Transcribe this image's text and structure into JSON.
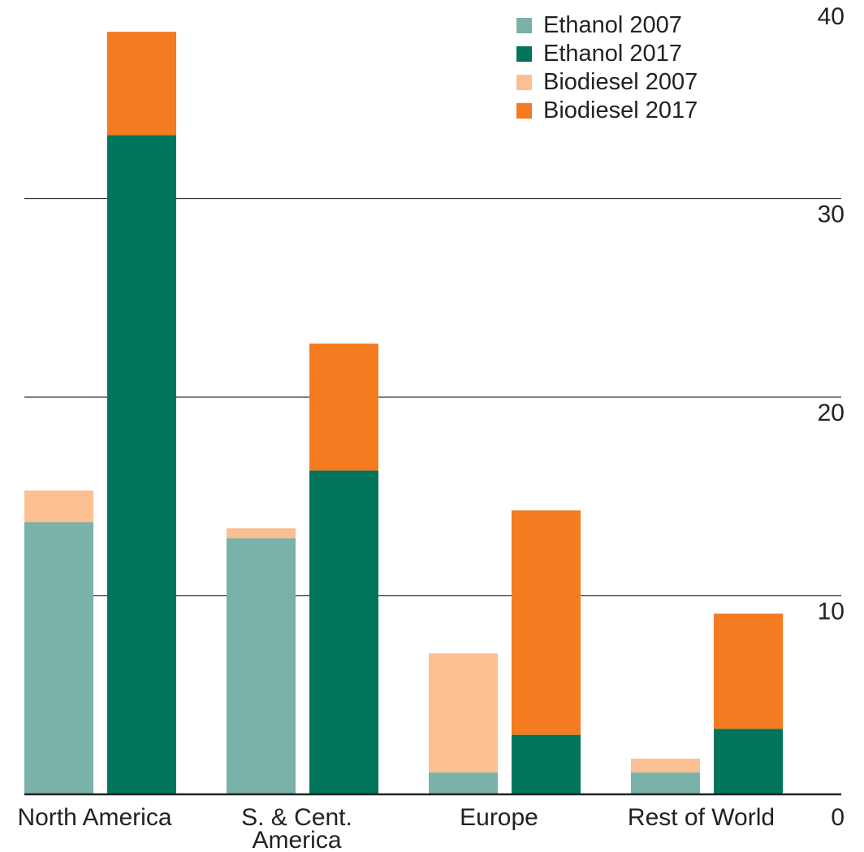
{
  "chart_data": {
    "type": "bar",
    "stacked": true,
    "categories": [
      [
        "North America"
      ],
      [
        "S. & Cent.",
        "America"
      ],
      [
        "Europe"
      ],
      [
        "Rest of World"
      ]
    ],
    "groups": [
      {
        "stack": [
          {
            "name": "Ethanol 2007",
            "color": "#7ab1a8",
            "values": [
              13.7,
              12.9,
              1.1,
              1.1
            ]
          },
          {
            "name": "Biodiesel 2007",
            "color": "#fbbf91",
            "values": [
              1.6,
              0.5,
              6.0,
              0.7
            ]
          }
        ]
      },
      {
        "stack": [
          {
            "name": "Ethanol 2017",
            "color": "#00755c",
            "values": [
              33.2,
              16.3,
              3.0,
              3.3
            ]
          },
          {
            "name": "Biodiesel 2017",
            "color": "#f47b20",
            "values": [
              5.2,
              6.4,
              11.3,
              5.8
            ]
          }
        ]
      }
    ],
    "legend": [
      {
        "name": "Ethanol 2007",
        "color": "#7ab1a8"
      },
      {
        "name": "Ethanol 2017",
        "color": "#00755c"
      },
      {
        "name": "Biodiesel 2007",
        "color": "#fbbf91"
      },
      {
        "name": "Biodiesel 2017",
        "color": "#f47b20"
      }
    ],
    "legend_position": "top-right",
    "ylim": [
      0,
      40
    ],
    "yticks": [
      0,
      10,
      20,
      30,
      40
    ],
    "y_axis_side": "right",
    "grid": true,
    "title": "",
    "xlabel": "",
    "ylabel": ""
  }
}
